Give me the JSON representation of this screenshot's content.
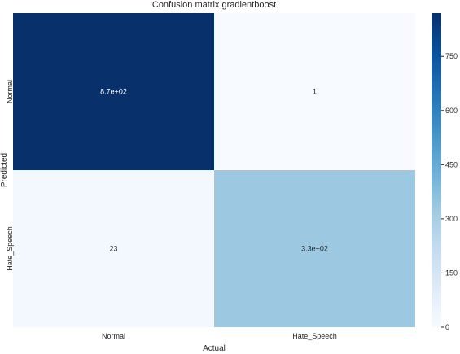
{
  "chart_data": {
    "type": "heatmap",
    "title": "Confusion matrix gradientboost",
    "xlabel": "Actual",
    "ylabel": "Predicted",
    "x_categories": [
      "Normal",
      "Hate_Speech"
    ],
    "y_categories": [
      "Normal",
      "Hate_Speech"
    ],
    "values": [
      [
        870,
        1
      ],
      [
        23,
        330
      ]
    ],
    "annotations": [
      [
        "8.7e+02",
        "1"
      ],
      [
        "23",
        "3.3e+02"
      ]
    ],
    "colorbar": {
      "min": 0,
      "max": 870,
      "ticks": [
        0,
        150,
        300,
        450,
        600,
        750
      ],
      "colormap": "Blues",
      "color_low": "#f7fbff",
      "color_high": "#08306b"
    },
    "colors": {
      "cell_dark_text": "#ffffff",
      "cell_light_text": "#262626"
    }
  }
}
